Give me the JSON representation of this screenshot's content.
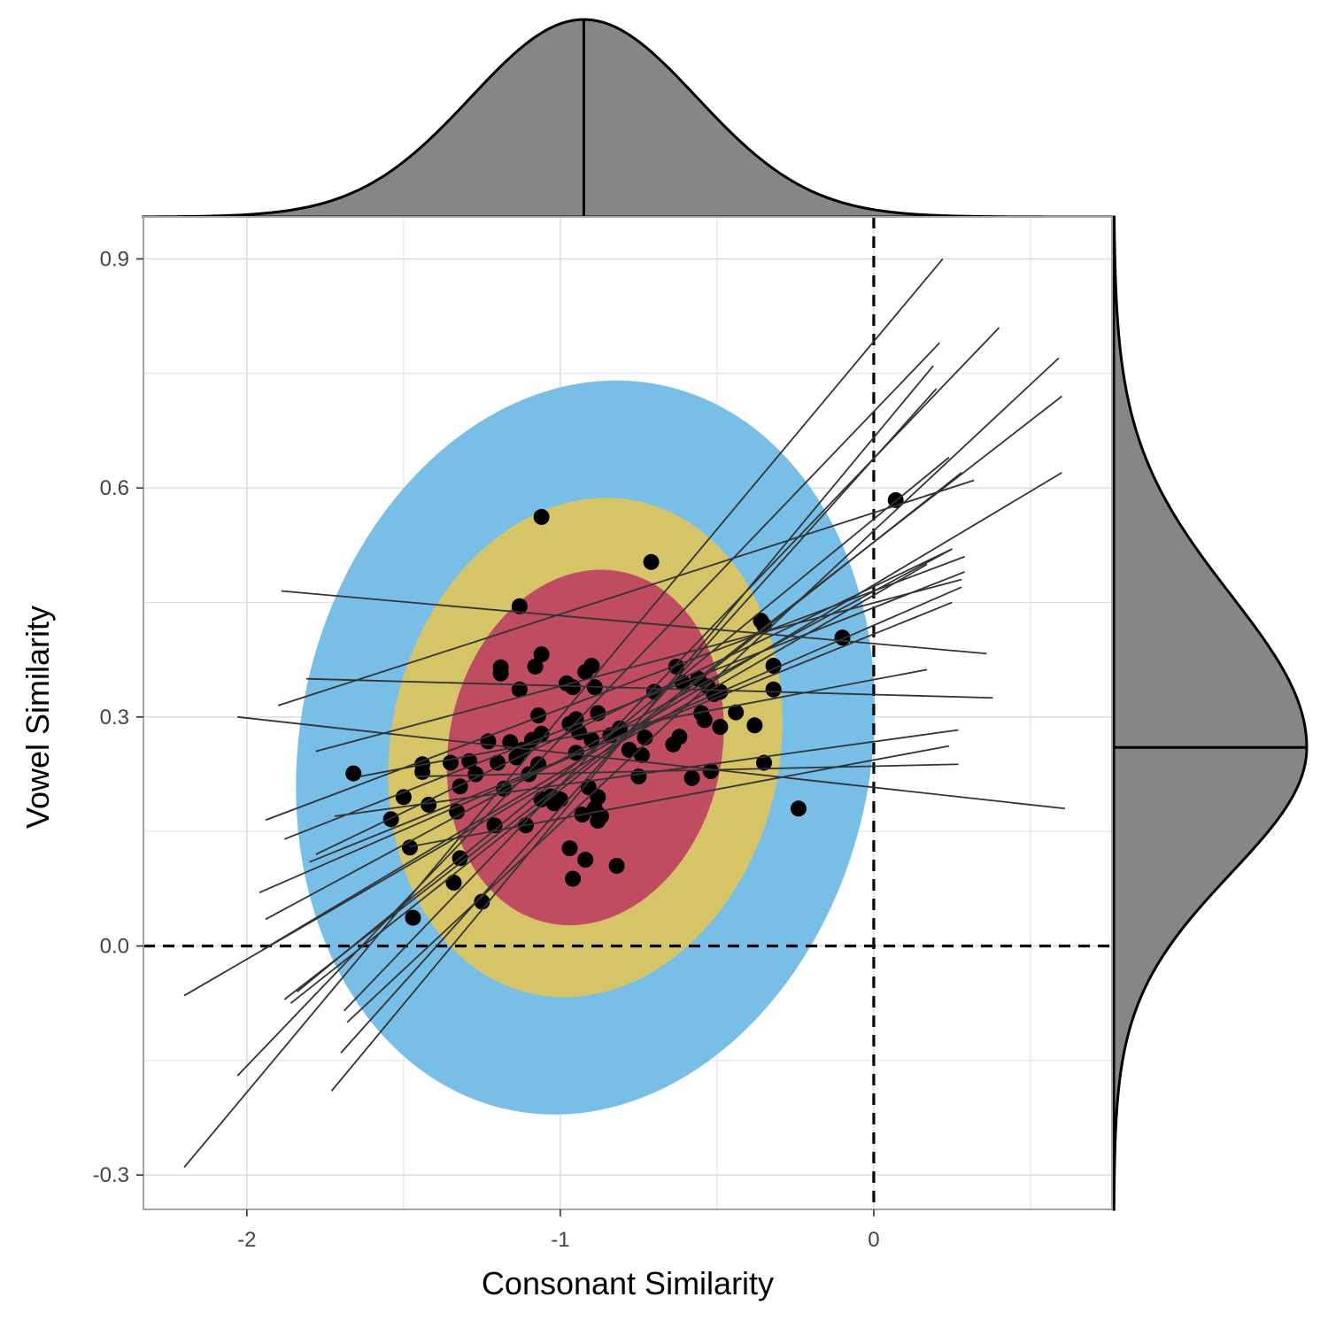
{
  "chart_data": {
    "type": "scatter",
    "title": "",
    "xlabel": "Consonant Similarity",
    "ylabel": "Vowel Similarity",
    "xlim": [
      -2.33,
      0.76
    ],
    "ylim": [
      -0.345,
      0.955
    ],
    "x_ticks": [
      -2,
      -1,
      0
    ],
    "x_tick_labels": [
      "-2",
      "-1",
      "0"
    ],
    "y_ticks": [
      -0.3,
      0.0,
      0.3,
      0.6,
      0.9
    ],
    "y_tick_labels": [
      "-0.3",
      "0.0",
      "0.3",
      "0.6",
      "0.9"
    ],
    "x_minor_gridlines": [
      -1.5,
      -0.5,
      0.5
    ],
    "y_minor_gridlines": [
      -0.15,
      0.15,
      0.45,
      0.75
    ],
    "grid": true,
    "reference_lines": {
      "x": 0,
      "y": 0,
      "style": "dashed"
    },
    "colors": {
      "ellipse_outer": "#78bfe8",
      "ellipse_middle": "#d6c567",
      "ellipse_inner": "#bf4c61",
      "points": "#000000",
      "lines": "#333333",
      "marginal_fill": "#868686",
      "grid": "#dedede",
      "panel_border": "#a6a6a6"
    },
    "ellipses": [
      {
        "level": "outer",
        "center": [
          -0.92,
          0.26
        ],
        "x_radius": 0.91,
        "y_radius": 0.485
      },
      {
        "level": "middle",
        "center": [
          -0.92,
          0.26
        ],
        "x_radius": 0.62,
        "y_radius": 0.33
      },
      {
        "level": "inner",
        "center": [
          -0.92,
          0.26
        ],
        "x_radius": 0.435,
        "y_radius": 0.235
      }
    ],
    "points": [
      [
        -1.66,
        0.226
      ],
      [
        -1.54,
        0.166
      ],
      [
        -1.5,
        0.195
      ],
      [
        -1.48,
        0.129
      ],
      [
        -1.47,
        0.037
      ],
      [
        -1.44,
        0.238
      ],
      [
        -1.44,
        0.228
      ],
      [
        -1.42,
        0.185
      ],
      [
        -1.35,
        0.24
      ],
      [
        -1.34,
        0.083
      ],
      [
        -1.33,
        0.176
      ],
      [
        -1.32,
        0.115
      ],
      [
        -1.32,
        0.209
      ],
      [
        -1.29,
        0.242
      ],
      [
        -1.27,
        0.225
      ],
      [
        -1.25,
        0.058
      ],
      [
        -1.23,
        0.268
      ],
      [
        -1.21,
        0.158
      ],
      [
        -1.2,
        0.24
      ],
      [
        -1.19,
        0.365
      ],
      [
        -1.19,
        0.357
      ],
      [
        -1.18,
        0.206
      ],
      [
        -1.16,
        0.267
      ],
      [
        -1.14,
        0.247
      ],
      [
        -1.13,
        0.445
      ],
      [
        -1.13,
        0.336
      ],
      [
        -1.12,
        0.257
      ],
      [
        -1.11,
        0.158
      ],
      [
        -1.1,
        0.225
      ],
      [
        -1.09,
        0.27
      ],
      [
        -1.08,
        0.366
      ],
      [
        -1.07,
        0.302
      ],
      [
        -1.07,
        0.238
      ],
      [
        -1.06,
        0.192
      ],
      [
        -1.06,
        0.278
      ],
      [
        -1.06,
        0.562
      ],
      [
        -1.06,
        0.382
      ],
      [
        -1.03,
        0.196
      ],
      [
        -1.02,
        0.187
      ],
      [
        -1.0,
        0.192
      ],
      [
        -0.98,
        0.344
      ],
      [
        -0.97,
        0.291
      ],
      [
        -0.97,
        0.128
      ],
      [
        -0.96,
        0.339
      ],
      [
        -0.96,
        0.088
      ],
      [
        -0.95,
        0.297
      ],
      [
        -0.95,
        0.253
      ],
      [
        -0.94,
        0.28
      ],
      [
        -0.93,
        0.172
      ],
      [
        -0.92,
        0.113
      ],
      [
        -0.92,
        0.359
      ],
      [
        -0.91,
        0.208
      ],
      [
        -0.9,
        0.367
      ],
      [
        -0.9,
        0.27
      ],
      [
        -0.89,
        0.339
      ],
      [
        -0.89,
        0.18
      ],
      [
        -0.88,
        0.195
      ],
      [
        -0.88,
        0.305
      ],
      [
        -0.88,
        0.164
      ],
      [
        -0.87,
        0.17
      ],
      [
        -0.84,
        0.276
      ],
      [
        -0.82,
        0.105
      ],
      [
        -0.81,
        0.285
      ],
      [
        -0.78,
        0.257
      ],
      [
        -0.75,
        0.222
      ],
      [
        -0.74,
        0.25
      ],
      [
        -0.73,
        0.273
      ],
      [
        -0.71,
        0.503
      ],
      [
        -0.7,
        0.333
      ],
      [
        -0.64,
        0.264
      ],
      [
        -0.63,
        0.366
      ],
      [
        -0.62,
        0.274
      ],
      [
        -0.61,
        0.345
      ],
      [
        -0.58,
        0.22
      ],
      [
        -0.56,
        0.35
      ],
      [
        -0.55,
        0.305
      ],
      [
        -0.54,
        0.296
      ],
      [
        -0.53,
        0.34
      ],
      [
        -0.52,
        0.229
      ],
      [
        -0.51,
        0.33
      ],
      [
        -0.49,
        0.287
      ],
      [
        -0.49,
        0.333
      ],
      [
        -0.44,
        0.306
      ],
      [
        -0.38,
        0.289
      ],
      [
        -0.36,
        0.426
      ],
      [
        -0.35,
        0.42
      ],
      [
        -0.35,
        0.24
      ],
      [
        -0.32,
        0.367
      ],
      [
        -0.32,
        0.336
      ],
      [
        -0.24,
        0.18
      ],
      [
        -0.1,
        0.404
      ],
      [
        0.07,
        0.584
      ]
    ],
    "lines": [
      [
        -2.2,
        -0.29,
        0.22,
        0.9
      ],
      [
        -2.03,
        -0.17,
        0.21,
        0.79
      ],
      [
        -1.73,
        -0.19,
        0.19,
        0.76
      ],
      [
        -1.7,
        -0.14,
        0.2,
        0.73
      ],
      [
        -1.69,
        -0.085,
        0.4,
        0.81
      ],
      [
        -1.68,
        -0.1,
        0.59,
        0.77
      ],
      [
        -1.86,
        -0.075,
        0.28,
        0.62
      ],
      [
        -1.84,
        -0.06,
        0.24,
        0.64
      ],
      [
        -1.88,
        -0.07,
        0.6,
        0.72
      ],
      [
        -1.94,
        0.035,
        0.25,
        0.52
      ],
      [
        -1.95,
        -0.005,
        0.6,
        0.62
      ],
      [
        -1.96,
        0.07,
        0.28,
        0.47
      ],
      [
        -2.2,
        -0.065,
        0.17,
        0.5
      ],
      [
        -1.94,
        0.165,
        0.29,
        0.51
      ],
      [
        -1.88,
        0.14,
        0.29,
        0.49
      ],
      [
        -1.8,
        0.11,
        0.25,
        0.45
      ],
      [
        -1.9,
        0.315,
        0.32,
        0.61
      ],
      [
        -1.78,
        0.255,
        0.28,
        0.48
      ],
      [
        -1.78,
        0.12,
        0.25,
        0.52
      ],
      [
        -1.89,
        0.465,
        0.36,
        0.383
      ],
      [
        -1.81,
        0.35,
        0.38,
        0.325
      ],
      [
        -2.03,
        0.3,
        0.61,
        0.18
      ],
      [
        -1.64,
        0.222,
        0.17,
        0.362
      ],
      [
        -1.46,
        0.222,
        0.27,
        0.238
      ],
      [
        -1.72,
        0.17,
        0.27,
        0.283
      ],
      [
        -1.48,
        0.13,
        0.24,
        0.262
      ]
    ],
    "marginal_x_median": -0.925,
    "marginal_y_median": 0.26
  }
}
